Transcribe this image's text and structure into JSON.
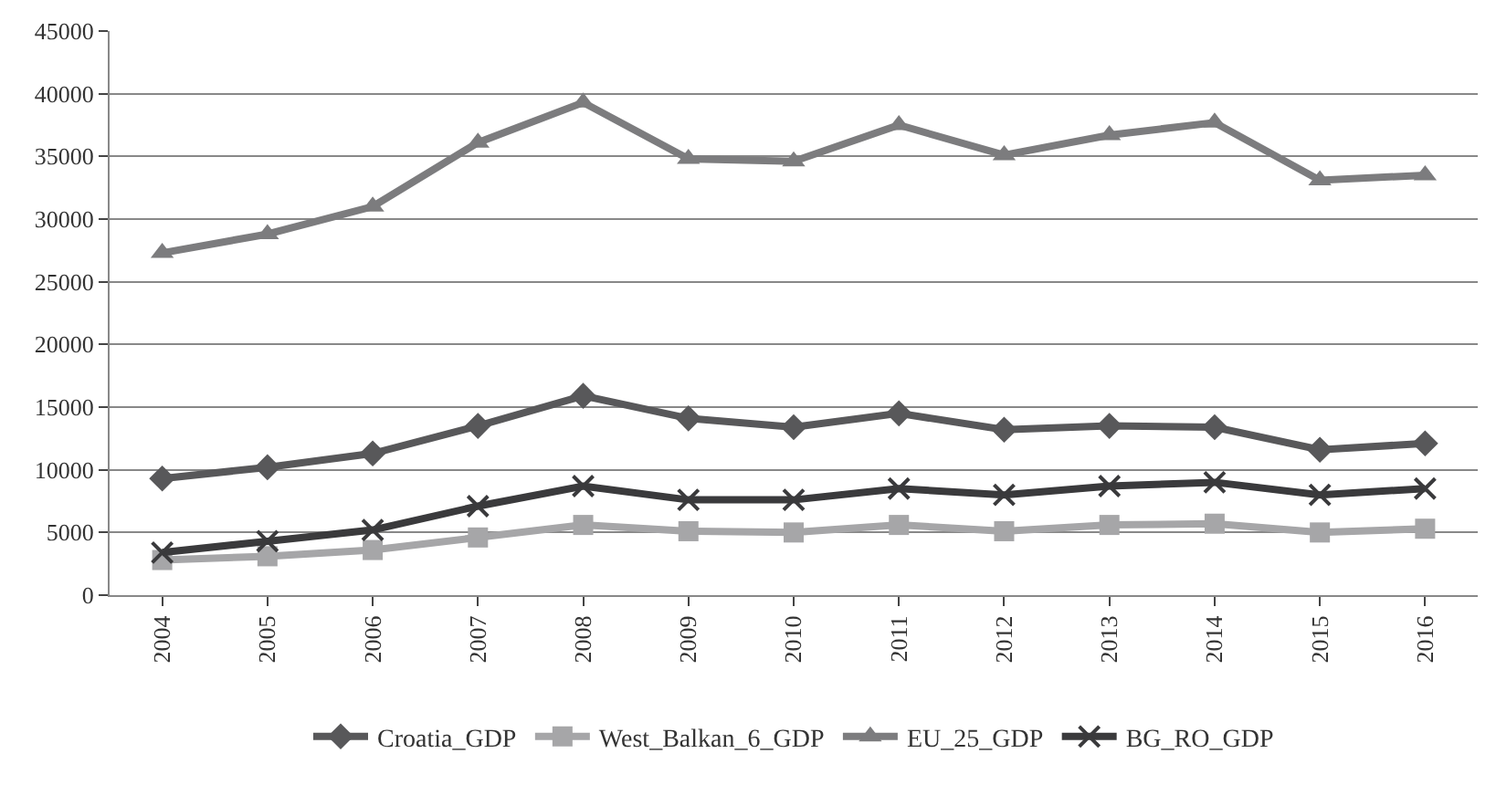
{
  "chart_data": {
    "type": "line",
    "categories": [
      "2004",
      "2005",
      "2006",
      "2007",
      "2008",
      "2009",
      "2010",
      "2011",
      "2012",
      "2013",
      "2014",
      "2015",
      "2016"
    ],
    "series": [
      {
        "name": "Croatia_GDP",
        "color": "#58585a",
        "marker": "diamond",
        "values": [
          9300,
          10200,
          11300,
          13500,
          15900,
          14100,
          13400,
          14500,
          13200,
          13500,
          13400,
          11600,
          12100
        ]
      },
      {
        "name": "West_Balkan_6_GDP",
        "color": "#a6a6a8",
        "marker": "square",
        "values": [
          2800,
          3100,
          3600,
          4600,
          5600,
          5100,
          5000,
          5600,
          5100,
          5600,
          5700,
          5000,
          5300
        ]
      },
      {
        "name": "EU_25_GDP",
        "color": "#7c7c7e",
        "marker": "triangle",
        "values": [
          27300,
          28800,
          31000,
          36100,
          39300,
          34800,
          34600,
          37500,
          35100,
          36700,
          37700,
          33100,
          33500
        ]
      },
      {
        "name": "BG_RO_GDP",
        "color": "#3a3a3c",
        "marker": "cross",
        "values": [
          3400,
          4300,
          5200,
          7100,
          8700,
          7600,
          7600,
          8500,
          8000,
          8700,
          9000,
          8000,
          8500
        ]
      }
    ],
    "ylim": [
      0,
      45000
    ],
    "yticks": [
      0,
      5000,
      10000,
      15000,
      20000,
      25000,
      30000,
      35000,
      40000,
      45000
    ],
    "grid": "y",
    "legend": "bottom",
    "line_style": "solid"
  }
}
